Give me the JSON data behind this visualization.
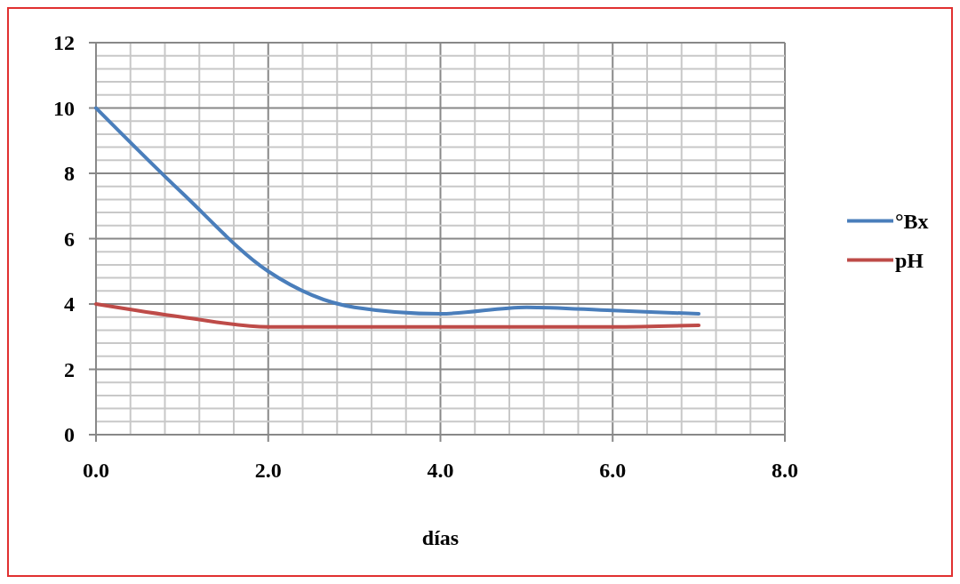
{
  "chart_data": {
    "type": "line",
    "xlabel": "días",
    "x": [
      0,
      1,
      2,
      3,
      4,
      5,
      6,
      7
    ],
    "series": [
      {
        "name": "°Bx",
        "color": "#4a7ebb",
        "values": [
          10,
          7.4,
          5,
          3.9,
          3.7,
          3.9,
          3.8,
          3.7
        ]
      },
      {
        "name": "pH",
        "color": "#be4b48",
        "values": [
          4,
          3.6,
          3.3,
          3.3,
          3.3,
          3.3,
          3.3,
          3.35
        ]
      }
    ],
    "xlim": [
      0,
      8
    ],
    "xticks": [
      {
        "value": 0,
        "label": "0.0"
      },
      {
        "value": 0.4,
        "label": null
      },
      {
        "value": 0.8,
        "label": null
      },
      {
        "value": 1.2,
        "label": null
      },
      {
        "value": 1.6,
        "label": null
      },
      {
        "value": 2,
        "label": "2.0"
      },
      {
        "value": 2.4,
        "label": null
      },
      {
        "value": 2.8,
        "label": null
      },
      {
        "value": 3.2,
        "label": null
      },
      {
        "value": 3.6,
        "label": null
      },
      {
        "value": 4,
        "label": "4.0"
      },
      {
        "value": 4.4,
        "label": null
      },
      {
        "value": 4.8,
        "label": null
      },
      {
        "value": 5.2,
        "label": null
      },
      {
        "value": 5.6,
        "label": null
      },
      {
        "value": 6,
        "label": "6.0"
      },
      {
        "value": 6.4,
        "label": null
      },
      {
        "value": 6.8,
        "label": null
      },
      {
        "value": 7.2,
        "label": null
      },
      {
        "value": 7.6,
        "label": null
      },
      {
        "value": 8,
        "label": "8.0"
      }
    ],
    "ylim": [
      0,
      12
    ],
    "yticks": [
      0,
      {
        "value": 0.4,
        "label": null
      },
      {
        "value": 0.8,
        "label": null
      },
      {
        "value": 1.2,
        "label": null
      },
      {
        "value": 1.6,
        "label": null
      },
      2,
      {
        "value": 2.4,
        "label": null
      },
      {
        "value": 2.8,
        "label": null
      },
      {
        "value": 3.2,
        "label": null
      },
      {
        "value": 3.6,
        "label": null
      },
      4,
      {
        "value": 4.4,
        "label": null
      },
      {
        "value": 4.8,
        "label": null
      },
      {
        "value": 5.2,
        "label": null
      },
      {
        "value": 5.6,
        "label": null
      },
      6,
      {
        "value": 6.4,
        "label": null
      },
      {
        "value": 6.8,
        "label": null
      },
      {
        "value": 7.2,
        "label": null
      },
      {
        "value": 7.6,
        "label": null
      },
      8,
      {
        "value": 8.4,
        "label": null
      },
      {
        "value": 8.8,
        "label": null
      },
      {
        "value": 9.2,
        "label": null
      },
      {
        "value": 9.6,
        "label": null
      },
      10,
      {
        "value": 10.4,
        "label": null
      },
      {
        "value": 10.8,
        "label": null
      },
      {
        "value": 11.2,
        "label": null
      },
      {
        "value": 11.6,
        "label": null
      },
      12
    ],
    "grid": true,
    "legend": "right",
    "marker": "none",
    "line_style": "solid"
  }
}
